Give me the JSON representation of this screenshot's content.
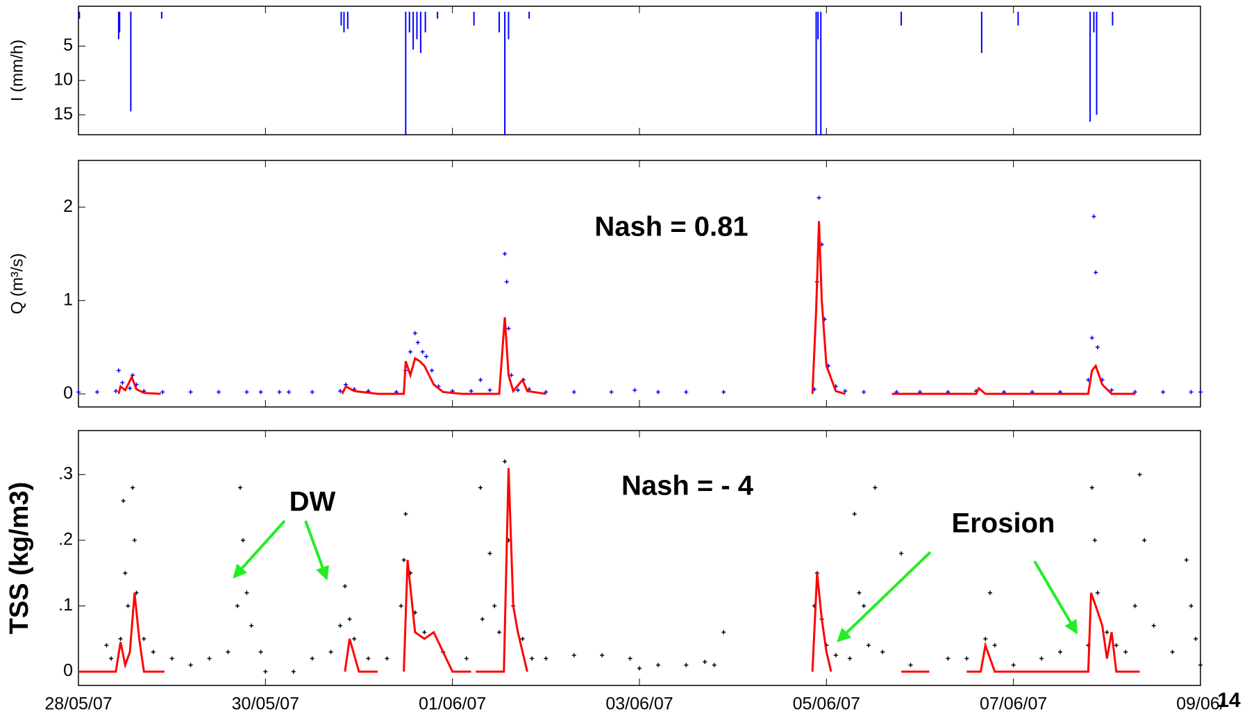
{
  "chart_data": [
    {
      "type": "bar",
      "ylabel": "I (mm/h)",
      "color": "#0000ff",
      "y_inverted": true,
      "xlim": [
        0,
        12
      ],
      "ylim": [
        -0.8,
        17.9
      ],
      "yticks": [
        5,
        10,
        15
      ],
      "x": [
        0.01,
        0.43,
        0.44,
        0.56,
        0.89,
        2.81,
        2.84,
        2.88,
        3.5,
        3.54,
        3.58,
        3.62,
        3.66,
        3.71,
        3.84,
        4.23,
        4.5,
        4.56,
        4.6,
        4.82,
        7.89,
        7.91,
        7.94,
        8.8,
        9.66,
        10.05,
        10.82,
        10.86,
        10.89,
        11.06
      ],
      "values": [
        1,
        4,
        3,
        14.5,
        1,
        2,
        3,
        2.5,
        18,
        3,
        5.5,
        4,
        6,
        3,
        1,
        2,
        3,
        18,
        4,
        1,
        18,
        4,
        18,
        2,
        6,
        2,
        16,
        3,
        15,
        2
      ]
    },
    {
      "type": "mixed",
      "ylabel": "Q (m³/s)",
      "xlim": [
        0,
        12
      ],
      "ylim": [
        -0.14,
        2.5
      ],
      "yticks": [
        0,
        1,
        2
      ],
      "annotations": [
        {
          "text": "Nash = 0.81",
          "color": "#000000"
        }
      ],
      "series": [
        {
          "mode": "markers",
          "color": "#0000ff",
          "x": [
            0.0,
            0.2,
            0.4,
            0.43,
            0.47,
            0.55,
            0.58,
            0.62,
            0.7,
            0.9,
            1.2,
            1.5,
            1.8,
            1.95,
            2.15,
            2.25,
            2.5,
            2.8,
            2.86,
            2.95,
            3.1,
            3.4,
            3.5,
            3.55,
            3.6,
            3.63,
            3.68,
            3.72,
            3.78,
            3.85,
            4.0,
            4.2,
            4.3,
            4.4,
            4.56,
            4.58,
            4.6,
            4.63,
            4.7,
            4.76,
            4.82,
            5.0,
            5.3,
            5.7,
            5.95,
            6.2,
            6.5,
            6.9,
            7.87,
            7.9,
            7.92,
            7.95,
            7.98,
            8.02,
            8.1,
            8.2,
            8.4,
            8.75,
            9.0,
            9.3,
            9.6,
            9.9,
            10.2,
            10.5,
            10.8,
            10.84,
            10.86,
            10.88,
            10.9,
            10.95,
            11.05,
            11.3,
            11.6,
            11.9,
            12.0
          ],
          "values": [
            0.02,
            0.02,
            0.03,
            0.25,
            0.12,
            0.06,
            0.2,
            0.1,
            0.03,
            0.02,
            0.02,
            0.02,
            0.02,
            0.02,
            0.02,
            0.02,
            0.02,
            0.03,
            0.1,
            0.05,
            0.03,
            0.02,
            0.25,
            0.45,
            0.65,
            0.55,
            0.45,
            0.4,
            0.25,
            0.08,
            0.03,
            0.03,
            0.15,
            0.04,
            1.5,
            1.2,
            0.7,
            0.2,
            0.04,
            0.15,
            0.05,
            0.02,
            0.02,
            0.02,
            0.04,
            0.02,
            0.02,
            0.02,
            0.05,
            1.2,
            2.1,
            1.6,
            0.8,
            0.3,
            0.08,
            0.03,
            0.02,
            0.02,
            0.02,
            0.02,
            0.03,
            0.02,
            0.02,
            0.02,
            0.15,
            0.6,
            1.9,
            1.3,
            0.5,
            0.15,
            0.04,
            0.02,
            0.02,
            0.02,
            0.02
          ]
        },
        {
          "mode": "line",
          "color": "#ff0000",
          "x": [
            0.43,
            0.45,
            0.5,
            0.57,
            0.62,
            0.7,
            0.88,
            1.5,
            2.82,
            2.86,
            2.95,
            3.2,
            3.48,
            3.5,
            3.55,
            3.6,
            3.65,
            3.7,
            3.8,
            3.9,
            4.1,
            4.5,
            4.56,
            4.6,
            4.65,
            4.75,
            4.8,
            5.0,
            6.0,
            7.85,
            7.89,
            7.92,
            7.95,
            8.0,
            8.1,
            8.2,
            8.5,
            8.7,
            9.6,
            9.63,
            9.7,
            10.8,
            10.84,
            10.88,
            10.95,
            11.05,
            11.3
          ],
          "values": [
            0.0,
            0.08,
            0.04,
            0.18,
            0.05,
            0.01,
            0.0,
            null,
            0.0,
            0.08,
            0.03,
            0.0,
            0.0,
            0.35,
            0.2,
            0.38,
            0.35,
            0.3,
            0.1,
            0.02,
            0.0,
            0.0,
            0.82,
            0.2,
            0.03,
            0.15,
            0.03,
            0.0,
            null,
            0.0,
            0.9,
            1.85,
            1.0,
            0.3,
            0.03,
            0.0,
            null,
            0.0,
            0.0,
            0.06,
            0.0,
            0.0,
            0.25,
            0.3,
            0.1,
            0.0,
            0.0
          ]
        }
      ]
    },
    {
      "type": "mixed",
      "ylabel": "TSS (kg/m3)",
      "xlim": [
        0,
        12
      ],
      "ylim": [
        -0.021,
        0.367
      ],
      "yticks": [
        0,
        {
          "value": 0.1,
          "label": ".1"
        },
        {
          "value": 0.2,
          "label": ".2"
        },
        {
          "value": 0.3,
          "label": ".3"
        }
      ],
      "xticks": [
        {
          "value": 0,
          "label": "28/05/07"
        },
        {
          "value": 2,
          "label": "30/05/07"
        },
        {
          "value": 4,
          "label": "01/06/07"
        },
        {
          "value": 6,
          "label": "03/06/07"
        },
        {
          "value": 8,
          "label": "05/06/07"
        },
        {
          "value": 10,
          "label": "07/06/07"
        },
        {
          "value": 12,
          "label": "09/06/"
        }
      ],
      "annotations": [
        {
          "text": "Nash = - 4",
          "color": "#000000"
        },
        {
          "text": "DW",
          "color": "#22ee22"
        },
        {
          "text": "Erosion",
          "color": "#22ee22"
        }
      ],
      "series": [
        {
          "mode": "markers",
          "color": "#000000",
          "x": [
            0.3,
            0.35,
            0.45,
            0.48,
            0.5,
            0.53,
            0.58,
            0.6,
            0.62,
            0.7,
            0.8,
            1.0,
            1.2,
            1.4,
            1.6,
            1.7,
            1.73,
            1.76,
            1.8,
            1.85,
            1.95,
            2.0,
            2.3,
            2.5,
            2.7,
            2.8,
            2.85,
            2.9,
            2.95,
            3.1,
            3.3,
            3.45,
            3.48,
            3.5,
            3.55,
            3.6,
            3.7,
            3.9,
            4.15,
            4.3,
            4.32,
            4.4,
            4.45,
            4.5,
            4.56,
            4.6,
            4.65,
            4.75,
            4.85,
            5.0,
            5.3,
            5.6,
            5.9,
            6.0,
            6.2,
            6.5,
            6.7,
            6.8,
            6.9,
            7.87,
            7.9,
            7.95,
            8.0,
            8.1,
            8.25,
            8.3,
            8.35,
            8.4,
            8.45,
            8.52,
            8.6,
            8.8,
            8.9,
            9.3,
            9.5,
            9.7,
            9.75,
            9.8,
            10.0,
            10.3,
            10.5,
            10.8,
            10.84,
            10.87,
            10.9,
            11.0,
            11.1,
            11.2,
            11.3,
            11.35,
            11.4,
            11.5,
            11.7,
            11.85,
            11.9,
            11.95,
            12.0
          ],
          "values": [
            0.04,
            0.02,
            0.05,
            0.26,
            0.15,
            0.1,
            0.28,
            0.2,
            0.12,
            0.05,
            0.03,
            0.02,
            0.01,
            0.02,
            0.03,
            0.1,
            0.28,
            0.2,
            0.12,
            0.07,
            0.03,
            0.0,
            0.0,
            0.02,
            0.03,
            0.07,
            0.13,
            0.08,
            0.05,
            0.02,
            0.02,
            0.1,
            0.17,
            0.24,
            0.15,
            0.09,
            0.06,
            0.03,
            0.02,
            0.28,
            0.08,
            0.18,
            0.1,
            0.06,
            0.32,
            0.2,
            0.1,
            0.05,
            0.02,
            0.02,
            0.025,
            0.025,
            0.02,
            0.005,
            0.01,
            0.01,
            0.015,
            0.01,
            0.06,
            0.1,
            0.15,
            0.08,
            0.04,
            0.025,
            0.02,
            0.24,
            0.12,
            0.1,
            0.04,
            0.28,
            0.03,
            0.18,
            0.01,
            0.02,
            0.02,
            0.05,
            0.12,
            0.04,
            0.01,
            0.02,
            0.03,
            0.04,
            0.28,
            0.2,
            0.12,
            0.06,
            0.04,
            0.03,
            0.1,
            0.3,
            0.2,
            0.07,
            0.03,
            0.17,
            0.1,
            0.05,
            0.01
          ]
        },
        {
          "mode": "line",
          "color": "#ff0000",
          "x": [
            0.0,
            0.4,
            0.45,
            0.5,
            0.55,
            0.6,
            0.65,
            0.7,
            0.92,
            1.5,
            2.85,
            2.9,
            3.0,
            3.2,
            3.3,
            3.48,
            3.52,
            3.6,
            3.7,
            3.8,
            3.9,
            4.0,
            4.2,
            4.22,
            4.25,
            4.55,
            4.6,
            4.65,
            4.7,
            4.75,
            4.8,
            6.0,
            7.85,
            7.9,
            7.95,
            8.0,
            8.05,
            8.5,
            8.8,
            9.1,
            9.3,
            9.5,
            9.65,
            9.7,
            9.8,
            10.8,
            10.83,
            10.88,
            10.95,
            11.0,
            11.05,
            11.1,
            11.35
          ],
          "values": [
            0.0,
            0.0,
            0.045,
            0.01,
            0.03,
            0.12,
            0.05,
            0.0,
            0.0,
            null,
            0.0,
            0.05,
            0.0,
            0.0,
            null,
            0.0,
            0.17,
            0.06,
            0.05,
            0.06,
            0.03,
            0.0,
            0.0,
            null,
            0.0,
            0.0,
            0.31,
            0.1,
            0.06,
            0.03,
            0.0,
            null,
            0.0,
            0.15,
            0.08,
            0.03,
            0.0,
            null,
            0.0,
            0.0,
            null,
            0.0,
            0.0,
            0.04,
            0.0,
            0.0,
            0.12,
            0.1,
            0.07,
            0.02,
            0.06,
            0.0,
            0.0
          ]
        }
      ]
    }
  ],
  "page_number": "14"
}
